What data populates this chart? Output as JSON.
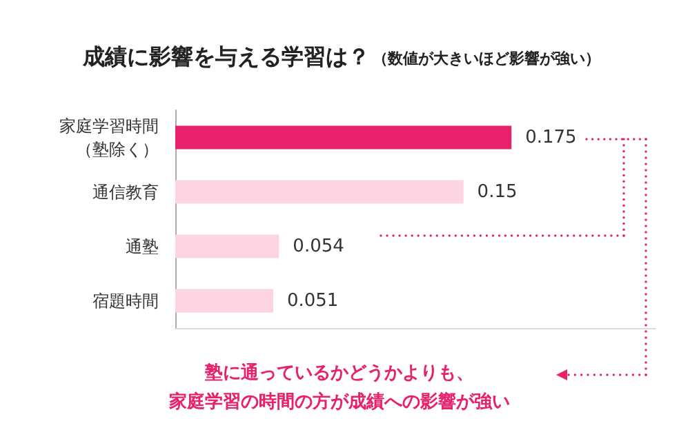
{
  "chart_data": {
    "type": "bar",
    "orientation": "horizontal",
    "title": "成績に影響を与える学習は？",
    "subtitle": "（数値が大きいほど影響が強い）",
    "categories": [
      "家庭学習時間（塾除く）",
      "通信教育",
      "通塾",
      "宿題時間"
    ],
    "values": [
      0.175,
      0.15,
      0.054,
      0.051
    ],
    "colors": [
      "#e8216c",
      "#fcd4e2",
      "#fcd4e2",
      "#fcd4e2"
    ],
    "xlim": [
      0,
      0.25
    ],
    "data_labels": true,
    "grid": false,
    "annotations": [
      "塾に通っているかどうかよりも、",
      "家庭学習の時間の方が成績への影響が強い"
    ]
  }
}
